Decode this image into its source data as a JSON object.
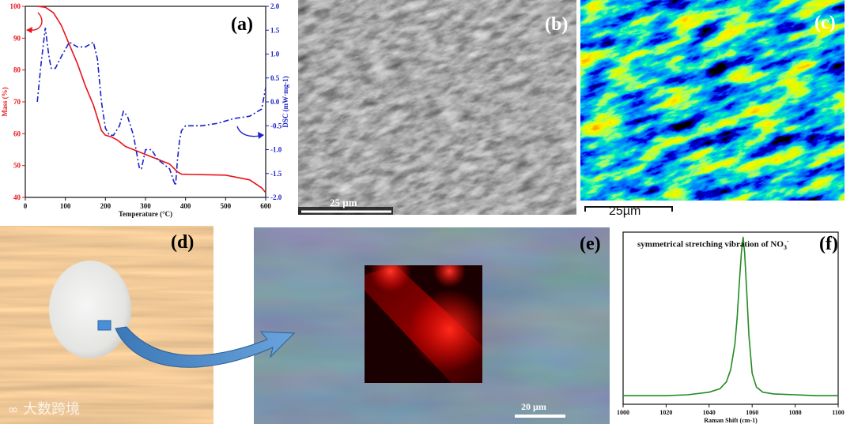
{
  "panels": {
    "a": {
      "label": "(a)"
    },
    "b": {
      "label": "(b)",
      "scalebar": "25 µm"
    },
    "c": {
      "label": "(c)",
      "scalebar": "25µm"
    },
    "d": {
      "label": "(d)",
      "watermark": "大数跨境"
    },
    "e": {
      "label": "(e)",
      "scalebar": "20 µm"
    },
    "f": {
      "label": "(f)",
      "annotation_main": "symmetrical stretching vibration of NO",
      "annotation_sub": "3",
      "annotation_sup": "-"
    }
  },
  "chart_data": [
    {
      "panel": "a",
      "type": "line",
      "xlabel": "Temperature (°C)",
      "ylabel_left": "Mass (%)",
      "ylabel_right": "DSC (mW·mg-1)",
      "xlim": [
        0,
        600
      ],
      "ylim_left": [
        40,
        100
      ],
      "ylim_right": [
        -2.0,
        2.0
      ],
      "x_ticks": [
        0,
        100,
        200,
        300,
        400,
        500,
        600
      ],
      "y_left_ticks": [
        40,
        50,
        60,
        70,
        80,
        90,
        100
      ],
      "y_right_ticks": [
        "-2.0",
        "-1.5",
        "-1.0",
        "-0.5",
        "0.0",
        "0.5",
        "1.0",
        "1.5",
        "2.0"
      ],
      "series": [
        {
          "axis": "left",
          "color": "#e8141b",
          "style": "solid",
          "x": [
            30,
            50,
            70,
            90,
            110,
            130,
            150,
            170,
            190,
            200,
            215,
            230,
            250,
            270,
            300,
            330,
            360,
            380,
            390,
            420,
            500,
            560,
            590,
            600
          ],
          "y": [
            100,
            99.7,
            98,
            94,
            88,
            82,
            75,
            69,
            61,
            59.5,
            59,
            58,
            56,
            55,
            53.5,
            52,
            50.5,
            48,
            47.3,
            47.2,
            47,
            45.5,
            43,
            41.5
          ]
        },
        {
          "axis": "right",
          "color": "#1a22c8",
          "style": "dashdot",
          "x": [
            30,
            38,
            45,
            50,
            55,
            60,
            65,
            75,
            90,
            110,
            130,
            150,
            170,
            180,
            190,
            200,
            210,
            220,
            235,
            245,
            255,
            270,
            285,
            290,
            300,
            315,
            330,
            345,
            360,
            370,
            375,
            380,
            385,
            390,
            400,
            440,
            480,
            520,
            560,
            590,
            600
          ],
          "y": [
            0.0,
            0.7,
            1.2,
            1.55,
            1.2,
            0.9,
            0.7,
            0.7,
            0.95,
            1.25,
            1.15,
            1.15,
            1.25,
            0.9,
            0.0,
            -0.55,
            -0.7,
            -0.7,
            -0.5,
            -0.2,
            -0.3,
            -0.7,
            -1.4,
            -1.4,
            -1.0,
            -1.0,
            -1.2,
            -1.3,
            -1.4,
            -1.65,
            -1.75,
            -1.2,
            -0.8,
            -0.6,
            -0.5,
            -0.5,
            -0.45,
            -0.35,
            -0.3,
            -0.15,
            0.3
          ]
        }
      ]
    },
    {
      "panel": "f",
      "type": "line",
      "xlabel": "Raman Shift (cm-1)",
      "xlim": [
        1000,
        1100
      ],
      "ylim": [
        0,
        1.0
      ],
      "x_ticks": [
        1000,
        1020,
        1040,
        1060,
        1080,
        1100
      ],
      "series": [
        {
          "color": "#228b22",
          "x": [
            1000,
            1010,
            1020,
            1030,
            1040,
            1045,
            1048,
            1050,
            1052,
            1053,
            1054,
            1055,
            1055.8,
            1056.5,
            1057.5,
            1058.5,
            1060,
            1062,
            1065,
            1070,
            1080,
            1090,
            1100
          ],
          "y": [
            0.05,
            0.05,
            0.05,
            0.055,
            0.07,
            0.09,
            0.13,
            0.2,
            0.35,
            0.5,
            0.7,
            0.88,
            0.97,
            0.88,
            0.65,
            0.4,
            0.18,
            0.1,
            0.07,
            0.06,
            0.055,
            0.05,
            0.05
          ]
        }
      ]
    }
  ]
}
